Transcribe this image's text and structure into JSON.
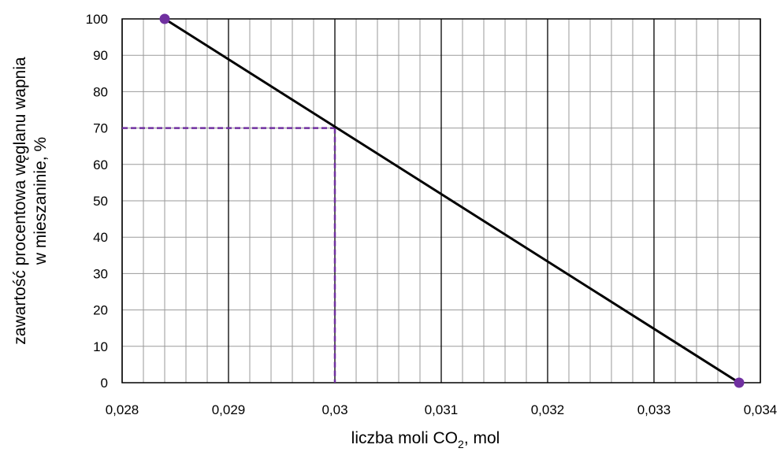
{
  "chart_data": {
    "type": "line",
    "xlabel": "liczba moli CO",
    "xlabel_subscript": "2",
    "xlabel_suffix": ", mol",
    "ylabel_line1": "zawartość procentowa węglanu wapnia",
    "ylabel_line2": "w mieszaninie, %",
    "xlim": [
      0.028,
      0.034
    ],
    "ylim": [
      0,
      100
    ],
    "x_ticks": [
      0.028,
      0.029,
      0.03,
      0.031,
      0.032,
      0.033,
      0.034
    ],
    "x_tick_labels": [
      "0,028",
      "0,029",
      "0,03",
      "0,031",
      "0,032",
      "0,033",
      "0,034"
    ],
    "y_ticks": [
      0,
      10,
      20,
      30,
      40,
      50,
      60,
      70,
      80,
      90,
      100
    ],
    "y_tick_labels": [
      "0",
      "10",
      "20",
      "30",
      "40",
      "50",
      "60",
      "70",
      "80",
      "90",
      "100"
    ],
    "grid": true,
    "x_minor_step": 0.0002,
    "series": [
      {
        "points": [
          [
            0.0284,
            100
          ],
          [
            0.0338,
            0
          ]
        ],
        "color": "#000000",
        "markers_color": "#7030a0"
      }
    ],
    "annotations": [
      {
        "kind": "reference-lines",
        "x": 0.03,
        "y": 70,
        "color": "#7030a0",
        "style": "dashed"
      }
    ]
  }
}
